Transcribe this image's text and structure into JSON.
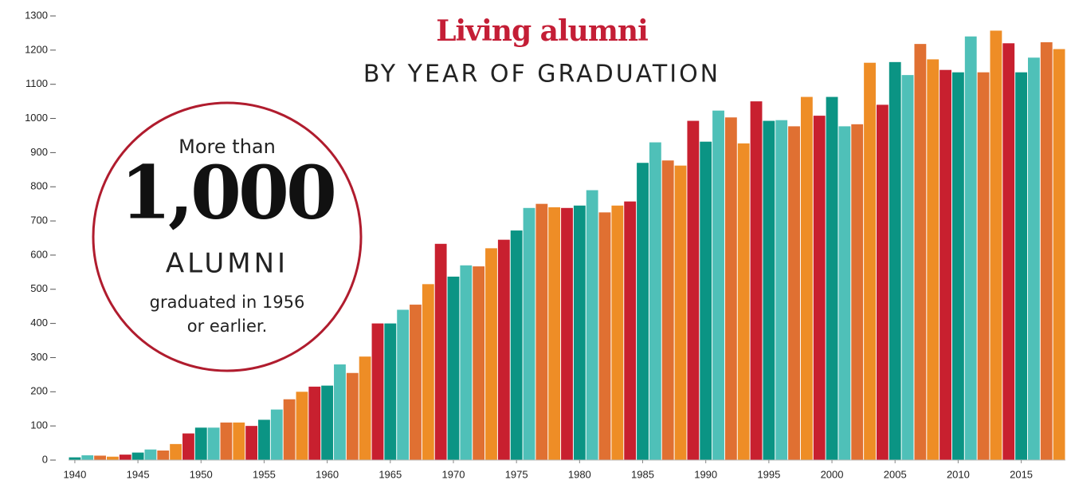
{
  "chart_data": {
    "type": "bar",
    "title": "Living alumni",
    "subtitle": "BY YEAR OF GRADUATION",
    "annotation": {
      "lead": "More than",
      "number": "1,000",
      "unit": "ALUMNI",
      "line1": "graduated in 1956",
      "line2": "or earlier."
    },
    "x": [
      1940,
      1941,
      1942,
      1943,
      1944,
      1945,
      1946,
      1947,
      1948,
      1949,
      1950,
      1951,
      1952,
      1953,
      1954,
      1955,
      1956,
      1957,
      1958,
      1959,
      1960,
      1961,
      1962,
      1963,
      1964,
      1965,
      1966,
      1967,
      1968,
      1969,
      1970,
      1971,
      1972,
      1973,
      1974,
      1975,
      1976,
      1977,
      1978,
      1979,
      1980,
      1981,
      1982,
      1983,
      1984,
      1985,
      1986,
      1987,
      1988,
      1989,
      1990,
      1991,
      1992,
      1993,
      1994,
      1995,
      1996,
      1997,
      1998,
      1999,
      2000,
      2001,
      2002,
      2003,
      2004,
      2005,
      2006,
      2007,
      2008,
      2009,
      2010,
      2011,
      2012,
      2013,
      2014,
      2015,
      2016,
      2017,
      2018
    ],
    "values": [
      8,
      14,
      13,
      10,
      16,
      22,
      31,
      28,
      47,
      78,
      95,
      95,
      110,
      110,
      100,
      118,
      148,
      178,
      200,
      215,
      218,
      280,
      255,
      303,
      400,
      400,
      440,
      455,
      515,
      633,
      537,
      570,
      567,
      620,
      645,
      672,
      738,
      750,
      740,
      738,
      745,
      790,
      725,
      745,
      757,
      870,
      930,
      877,
      862,
      993,
      932,
      1023,
      1003,
      927,
      1050,
      993,
      995,
      977,
      1063,
      1008,
      1063,
      977,
      983,
      1163,
      1040,
      1165,
      1127,
      1218,
      1173,
      1142,
      1135,
      1240,
      1135,
      1257,
      1220,
      1135,
      1178,
      1223,
      1203
    ],
    "colors": [
      "#0b9484",
      "#4fc0b8",
      "#e07032",
      "#ee8d26",
      "#c8202f"
    ],
    "xlim": [
      1939.5,
      2018.5
    ],
    "xticks": [
      1940,
      1945,
      1950,
      1955,
      1960,
      1965,
      1970,
      1975,
      1980,
      1985,
      1990,
      1995,
      2000,
      2005,
      2010,
      2015
    ],
    "ylim": [
      0,
      1300
    ],
    "yticks": [
      0,
      100,
      200,
      300,
      400,
      500,
      600,
      700,
      800,
      900,
      1000,
      1100,
      1200,
      1300
    ]
  }
}
